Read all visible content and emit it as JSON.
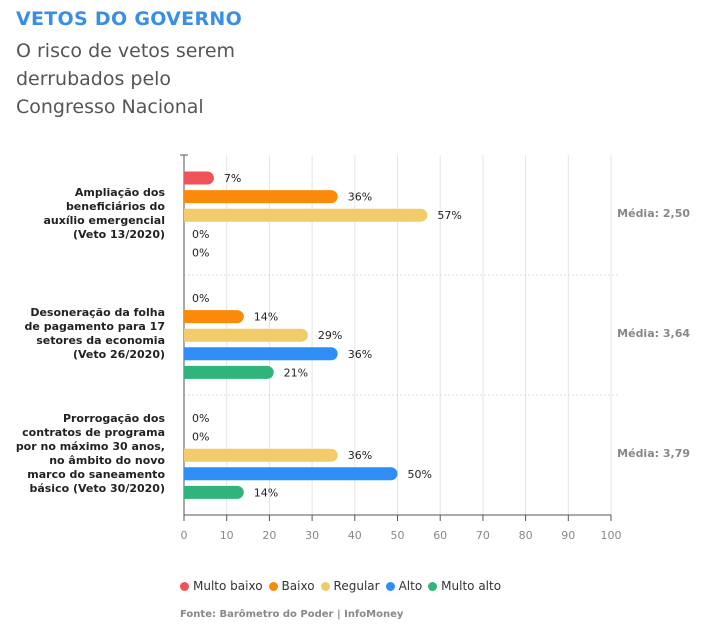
{
  "header": {
    "title": "VETOS DO GOVERNO",
    "subtitle": "O risco de vetos serem derrubados pelo Congresso Nacional"
  },
  "chart_data": {
    "type": "bar",
    "orientation": "horizontal",
    "categories": [
      [
        "Ampliação dos",
        "beneficiários do",
        "auxílio emergencial",
        "(Veto 13/2020)"
      ],
      [
        "Desoneração da folha",
        "de pagamento para 17",
        "setores da economia",
        "(Veto 26/2020)"
      ],
      [
        "Prorrogação dos",
        "contratos de programa",
        "por no máximo 30 anos,",
        "no âmbito do novo",
        "marco do saneamento",
        "básico (Veto 30/2020)"
      ]
    ],
    "series": [
      {
        "name": "Multo baixo",
        "color": "#f0525a",
        "values": [
          7,
          0,
          0
        ]
      },
      {
        "name": "Baixo",
        "color": "#fb8a0a",
        "values": [
          36,
          14,
          0
        ]
      },
      {
        "name": "Regular",
        "color": "#f2cc6b",
        "values": [
          57,
          29,
          36
        ]
      },
      {
        "name": "Alto",
        "color": "#2f8ef5",
        "values": [
          0,
          36,
          50
        ]
      },
      {
        "name": "Multo alto",
        "color": "#2fb57c",
        "values": [
          0,
          21,
          14
        ]
      }
    ],
    "averages": [
      "Média: 2,50",
      "Média: 3,64",
      "Média: 3,79"
    ],
    "xlim": [
      0,
      100
    ],
    "xticks": [
      0,
      10,
      20,
      30,
      40,
      50,
      60,
      70,
      80,
      90,
      100
    ],
    "grid": true,
    "legend_placement": "bottom-left"
  },
  "footer": {
    "source": "Fonte: Barômetro do Poder | InfoMoney"
  }
}
